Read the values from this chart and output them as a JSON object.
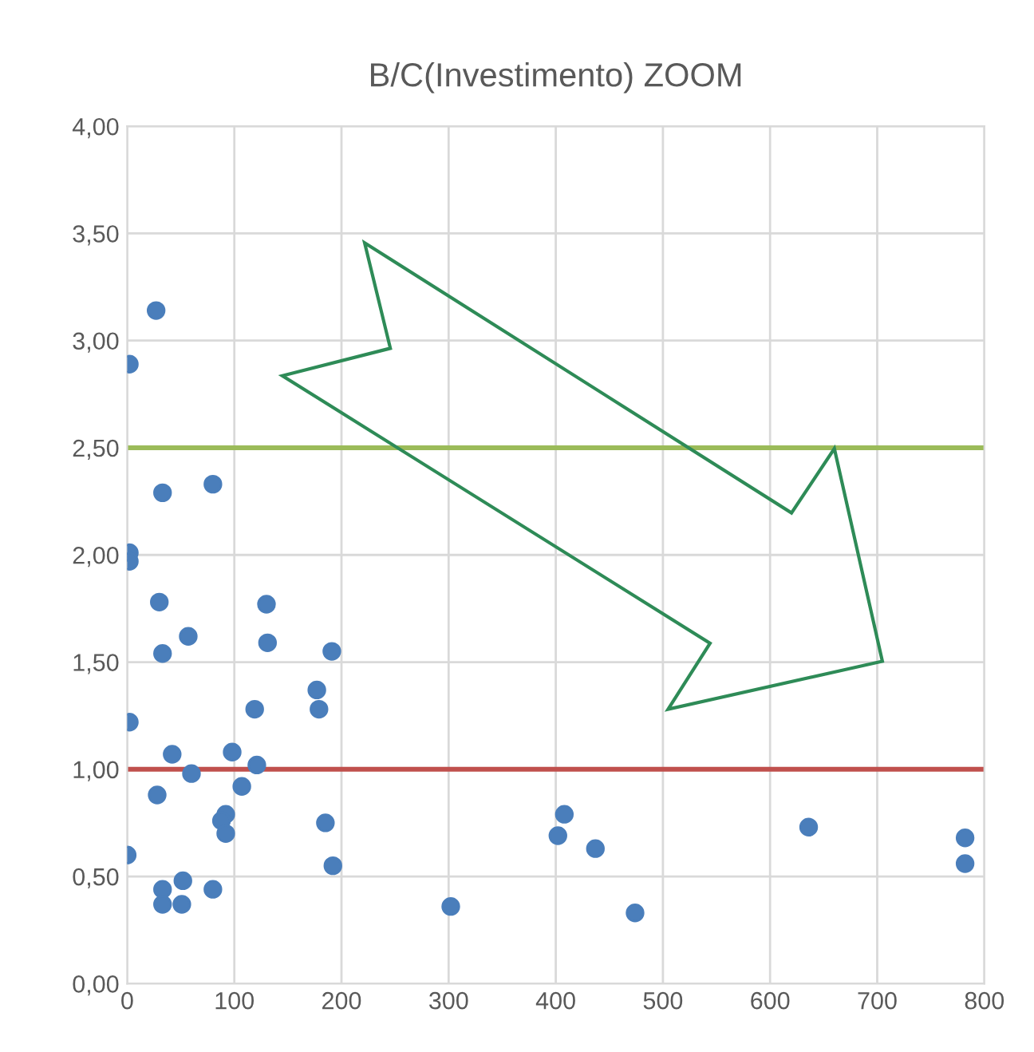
{
  "chart_data": {
    "type": "scatter",
    "title": "B/C(Investimento) ZOOM",
    "x": [
      27,
      2,
      33,
      80,
      2,
      2,
      30,
      130,
      57,
      33,
      131,
      191,
      177,
      179,
      119,
      2,
      42,
      98,
      60,
      121,
      107,
      28,
      92,
      88,
      92,
      185,
      192,
      0,
      33,
      33,
      52,
      51,
      80,
      408,
      402,
      437,
      636,
      782,
      782,
      302,
      474
    ],
    "series": [
      {
        "color": "#4a7ebb",
        "values": [
          3.14,
          2.89,
          2.29,
          2.33,
          2.01,
          1.97,
          1.78,
          1.77,
          1.62,
          1.54,
          1.59,
          1.55,
          1.37,
          1.28,
          1.28,
          1.22,
          1.07,
          1.08,
          0.98,
          1.02,
          0.92,
          0.88,
          0.79,
          0.76,
          0.7,
          0.75,
          0.55,
          0.6,
          0.44,
          0.37,
          0.48,
          0.37,
          0.44,
          0.79,
          0.69,
          0.63,
          0.73,
          0.68,
          0.56,
          0.36,
          0.33
        ]
      }
    ],
    "xlim": [
      0,
      800
    ],
    "xticks": [
      0,
      100,
      200,
      300,
      400,
      500,
      600,
      700,
      800
    ],
    "ylim": [
      0,
      4
    ],
    "yticks": [
      {
        "value": 0,
        "label": "0,00"
      },
      {
        "value": 0.5,
        "label": "0,50"
      },
      {
        "value": 1,
        "label": "1,00"
      },
      {
        "value": 1.5,
        "label": "1,50"
      },
      {
        "value": 2,
        "label": "2,00"
      },
      {
        "value": 2.5,
        "label": "2,50"
      },
      {
        "value": 3,
        "label": "3,00"
      },
      {
        "value": 3.5,
        "label": "3,50"
      },
      {
        "value": 4,
        "label": "4,00"
      }
    ],
    "ref_lines": [
      {
        "axis": "y",
        "value": 2.5,
        "color": "#9bbb59"
      },
      {
        "axis": "y",
        "value": 1,
        "color": "#c0504d"
      }
    ],
    "grid": true,
    "marker": "circle",
    "legend": false
  }
}
